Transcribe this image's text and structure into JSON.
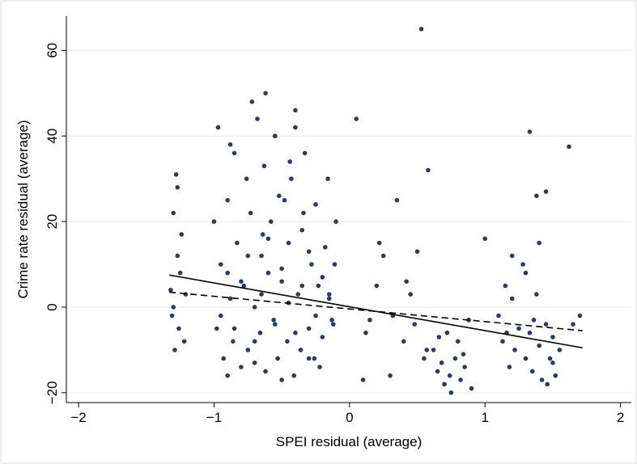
{
  "chart_data": {
    "type": "scatter",
    "xlabel": "SPEI residual (average)",
    "ylabel": "Crime rate residual (average)",
    "xlim": [
      -2.09,
      2.08
    ],
    "ylim": [
      -22.3,
      68
    ],
    "xticks": [
      {
        "value": -2,
        "label": "−2"
      },
      {
        "value": -1,
        "label": "−1"
      },
      0,
      1,
      2
    ],
    "yticks": [
      {
        "value": -20,
        "label": "−20"
      },
      0,
      20,
      40,
      60
    ],
    "grid": true,
    "color": "#1f3d6e",
    "x": [
      -1.32,
      -1.3,
      -1.29,
      -1.28,
      -1.27,
      -1.26,
      -1.25,
      -1.31,
      -1.24,
      -1.22,
      -1.3,
      -1.27,
      -1.21,
      -1.0,
      -0.98,
      -0.97,
      -0.95,
      -0.93,
      -0.9,
      -0.88,
      -0.86,
      -0.85,
      -0.83,
      -0.8,
      -0.78,
      -0.76,
      -0.75,
      -0.73,
      -0.7,
      -0.68,
      -0.66,
      -0.65,
      -0.63,
      -0.62,
      -0.6,
      -0.58,
      -0.56,
      -0.55,
      -0.53,
      -0.5,
      -0.48,
      -0.46,
      -0.45,
      -0.43,
      -0.41,
      -0.4,
      -0.38,
      -0.36,
      -0.35,
      -0.33,
      -0.3,
      -0.28,
      -0.26,
      -0.25,
      -0.23,
      -0.2,
      -0.18,
      -0.16,
      -0.15,
      -0.13,
      -0.11,
      -0.1,
      -0.95,
      -0.9,
      -0.85,
      -0.8,
      -0.75,
      -0.7,
      -0.65,
      -0.6,
      -0.55,
      -0.5,
      -0.45,
      -0.4,
      -0.35,
      -0.3,
      -0.25,
      -0.2,
      -0.15,
      -0.12,
      -0.88,
      -0.72,
      -0.64,
      -0.52,
      -0.44,
      -0.34,
      -0.22,
      -0.9,
      -0.7,
      -0.5,
      -0.3,
      -0.62,
      -0.4,
      0.05,
      0.1,
      0.15,
      0.2,
      0.25,
      0.3,
      0.35,
      0.4,
      0.45,
      0.5,
      0.53,
      0.55,
      0.58,
      0.12,
      0.22,
      0.32,
      0.42,
      0.48,
      0.57,
      0.62,
      0.65,
      0.68,
      0.7,
      0.72,
      0.75,
      0.78,
      0.8,
      0.82,
      0.85,
      0.88,
      0.9,
      0.66,
      0.74,
      0.84,
      1.1,
      1.13,
      1.15,
      1.18,
      1.2,
      1.22,
      1.25,
      1.28,
      1.3,
      1.33,
      1.35,
      1.38,
      1.4,
      1.42,
      1.45,
      1.48,
      1.5,
      1.52,
      1.55,
      1.2,
      1.3,
      1.4,
      1.5,
      1.16,
      1.36,
      1.46,
      1.33,
      1.38,
      1.45,
      1.62,
      1.0,
      1.65,
      1.7
    ],
    "values": [
      4,
      22,
      -10,
      31,
      12,
      -5,
      8,
      -2,
      17,
      -8,
      0,
      28,
      3,
      20,
      -5,
      42,
      10,
      -12,
      25,
      2,
      -8,
      36,
      15,
      -14,
      5,
      30,
      -10,
      22,
      0,
      44,
      -6,
      12,
      33,
      -15,
      8,
      20,
      -3,
      40,
      -12,
      6,
      25,
      -8,
      15,
      30,
      -16,
      46,
      3,
      -10,
      18,
      36,
      -5,
      10,
      -12,
      24,
      5,
      -7,
      14,
      30,
      2,
      -3,
      10,
      20,
      -2,
      8,
      -5,
      6,
      12,
      -8,
      3,
      16,
      -4,
      9,
      1,
      -6,
      5,
      13,
      -2,
      7,
      3,
      -4,
      38,
      48,
      17,
      26,
      34,
      22,
      -14,
      -16,
      -13,
      -17,
      -12,
      50,
      42,
      44,
      -17,
      -3,
      5,
      12,
      -16,
      25,
      -8,
      3,
      13,
      65,
      -12,
      32,
      -6,
      15,
      -2,
      6,
      -4,
      -10,
      -10,
      -15,
      -13,
      -18,
      -6,
      -20,
      -12,
      -8,
      -17,
      -14,
      -3,
      -19,
      -7,
      -16,
      -11,
      -2,
      -8,
      5,
      -14,
      2,
      -10,
      -5,
      10,
      -12,
      -6,
      -15,
      3,
      -9,
      -17,
      -4,
      -12,
      -7,
      -16,
      -10,
      12,
      8,
      15,
      -13,
      -6,
      -3,
      -18,
      41,
      26,
      27,
      37.5,
      16,
      -4,
      -2
    ],
    "lines": [
      {
        "style": "solid",
        "x": [
          -1.33,
          1.72
        ],
        "values": [
          7.5,
          -9.5
        ]
      },
      {
        "style": "dashed",
        "x": [
          -1.33,
          1.72
        ],
        "values": [
          3.5,
          -5.5
        ]
      }
    ]
  }
}
